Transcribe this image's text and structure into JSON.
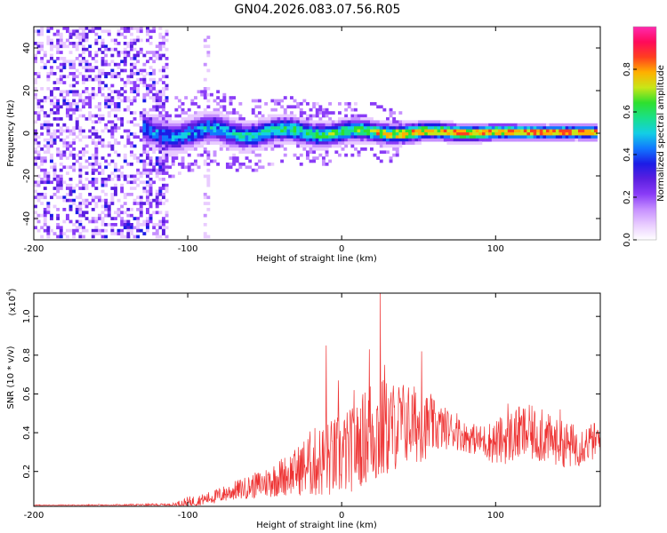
{
  "title": "GN04.2026.083.07.56.R05",
  "chart_data": [
    {
      "type": "heatmap",
      "title": "GN04.2026.083.07.56.R05",
      "xlabel": "Height of straight line (km)",
      "ylabel": "Frequency (Hz)",
      "xlim": [
        -200,
        168
      ],
      "ylim": [
        -50,
        50
      ],
      "x_ticks": [
        -200,
        -100,
        0,
        100
      ],
      "x_tick_labels": [
        "-200",
        "-100",
        "0",
        "100"
      ],
      "y_ticks": [
        -40,
        -20,
        0,
        20,
        40
      ],
      "y_tick_labels": [
        "-40",
        "-20",
        "0",
        "20",
        "40"
      ],
      "colorbar": {
        "label": "Normalized spectral amplitude",
        "range": [
          0.0,
          1.0
        ],
        "ticks": [
          0.0,
          0.2,
          0.4,
          0.6,
          0.8
        ],
        "tick_labels": [
          "0.0",
          "0.2",
          "0.4",
          "0.6",
          "0.8"
        ],
        "colors": [
          "#ffffff",
          "#e9ccff",
          "#c690ff",
          "#8a3cf7",
          "#5b1fe0",
          "#1c1ce6",
          "#1177ff",
          "#13cfe5",
          "#19e08a",
          "#2ee02e",
          "#c8e618",
          "#ffb000",
          "#ff3f1f",
          "#ff0a5a",
          "#ff2ab0"
        ]
      },
      "description_data": {
        "noise_region_x": [
          -200,
          -112
        ],
        "secondary_noise_band_x": [
          -90,
          -85
        ],
        "signal_ridge_frequency_hz": 0,
        "signal_start_x": -128,
        "strongest_segment_x": [
          20,
          160
        ]
      }
    },
    {
      "type": "line",
      "xlabel": "Height of straight line (km)",
      "ylabel": "SNR (10 * v/v)",
      "scale_label": "(x10",
      "scale_exponent": "4",
      "scale_suffix": ")",
      "xlim": [
        -200,
        168
      ],
      "ylim": [
        0.02,
        1.12
      ],
      "x_ticks": [
        -200,
        -100,
        0,
        100
      ],
      "x_tick_labels": [
        "-200",
        "-100",
        "0",
        "100"
      ],
      "y_ticks": [
        0.2,
        0.4,
        0.6,
        0.8,
        1.0
      ],
      "y_tick_labels": [
        "0.2",
        "0.4",
        "0.6",
        "0.8",
        "1.0"
      ],
      "series": [
        {
          "name": "SNR",
          "color": "#ee3333",
          "envelope_x": [
            -200,
            -150,
            -110,
            -100,
            -90,
            -80,
            -70,
            -60,
            -50,
            -40,
            -30,
            -20,
            -10,
            0,
            10,
            15,
            20,
            25,
            30,
            40,
            50,
            60,
            70,
            80,
            90,
            100,
            110,
            120,
            130,
            140,
            150,
            160,
            168
          ],
          "envelope_mean": [
            0.025,
            0.025,
            0.028,
            0.04,
            0.055,
            0.075,
            0.1,
            0.12,
            0.14,
            0.17,
            0.2,
            0.24,
            0.26,
            0.28,
            0.33,
            0.38,
            0.42,
            0.4,
            0.42,
            0.45,
            0.44,
            0.43,
            0.42,
            0.38,
            0.36,
            0.35,
            0.38,
            0.4,
            0.38,
            0.35,
            0.33,
            0.35,
            0.36
          ],
          "envelope_amp": [
            0.004,
            0.005,
            0.008,
            0.03,
            0.03,
            0.04,
            0.05,
            0.06,
            0.08,
            0.1,
            0.12,
            0.18,
            0.2,
            0.22,
            0.22,
            0.25,
            0.3,
            0.3,
            0.25,
            0.22,
            0.2,
            0.14,
            0.1,
            0.08,
            0.08,
            0.12,
            0.14,
            0.15,
            0.14,
            0.12,
            0.12,
            0.1,
            0.1
          ],
          "peaks": [
            [
              -10,
              0.85
            ],
            [
              -2,
              0.67
            ],
            [
              8,
              0.62
            ],
            [
              18,
              0.83
            ],
            [
              25,
              1.12
            ],
            [
              28,
              0.75
            ],
            [
              38,
              0.58
            ],
            [
              52,
              0.82
            ],
            [
              58,
              0.6
            ],
            [
              75,
              0.5
            ],
            [
              108,
              0.55
            ],
            [
              115,
              0.53
            ],
            [
              130,
              0.52
            ],
            [
              142,
              0.52
            ]
          ]
        }
      ]
    }
  ]
}
